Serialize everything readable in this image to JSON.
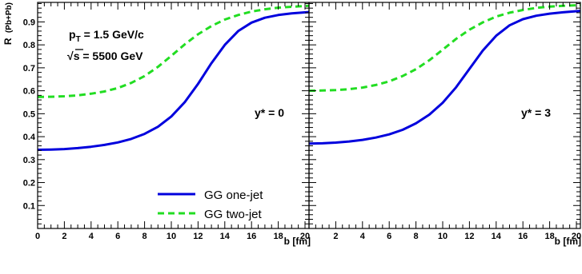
{
  "chart_data": [
    {
      "type": "line",
      "panel_label": "y* = 0",
      "annotation_lines": [
        "p_T = 1.5 GeV/c",
        "√s = 5500 GeV"
      ],
      "annotation_parts": {
        "pt_symbol": "p",
        "pt_subscript": "T",
        "pt_value": "= 1.5 GeV/c",
        "sqrt_symbol": "√",
        "sqrt_value": "s = 5500 GeV"
      },
      "xlabel": "b [fm]",
      "ylabel": "R (Pb+Pb)",
      "ylabel_parts": {
        "main": "R",
        "paren": "(Pb+Pb)"
      },
      "xlim": [
        0,
        20.3
      ],
      "ylim": [
        0.0,
        0.985
      ],
      "x_ticks": [
        0,
        2,
        4,
        6,
        8,
        10,
        12,
        14,
        16,
        18,
        20
      ],
      "x_tick_labels": [
        "0",
        "2",
        "4",
        "6",
        "8",
        "10",
        "12",
        "14",
        "16",
        "18",
        "20"
      ],
      "y_ticks": [
        0.1,
        0.2,
        0.3,
        0.4,
        0.5,
        0.6,
        0.7,
        0.8,
        0.9
      ],
      "y_tick_labels": [
        "0.1",
        "0.2",
        "0.3",
        "0.4",
        "0.5",
        "0.6",
        "0.7",
        "0.8",
        "0.9"
      ],
      "grid": false,
      "legend_placement": "bottom-center",
      "series": [
        {
          "name": "GG one-jet",
          "color": "#0000dd",
          "dash": "solid",
          "x": [
            0,
            1,
            2,
            3,
            4,
            5,
            6,
            7,
            8,
            9,
            10,
            11,
            12,
            13,
            14,
            15,
            16,
            17,
            18,
            19,
            20.3
          ],
          "y": [
            0.343,
            0.344,
            0.346,
            0.35,
            0.356,
            0.364,
            0.375,
            0.39,
            0.412,
            0.443,
            0.488,
            0.55,
            0.63,
            0.72,
            0.8,
            0.86,
            0.897,
            0.918,
            0.93,
            0.937,
            0.943
          ]
        },
        {
          "name": "GG two-jet",
          "color": "#22dd22",
          "dash": "dashed",
          "x": [
            0,
            1,
            2,
            3,
            4,
            5,
            6,
            7,
            8,
            9,
            10,
            11,
            12,
            13,
            14,
            15,
            16,
            17,
            18,
            19,
            20.3
          ],
          "y": [
            0.573,
            0.574,
            0.576,
            0.58,
            0.587,
            0.597,
            0.612,
            0.634,
            0.664,
            0.704,
            0.752,
            0.802,
            0.846,
            0.882,
            0.91,
            0.93,
            0.945,
            0.955,
            0.962,
            0.966,
            0.97
          ]
        }
      ]
    },
    {
      "type": "line",
      "panel_label": "y* = 3",
      "xlabel": "b [fm]",
      "xlim": [
        0,
        20.3
      ],
      "ylim": [
        0.0,
        0.985
      ],
      "x_ticks": [
        0,
        2,
        4,
        6,
        8,
        10,
        12,
        14,
        16,
        18,
        20
      ],
      "x_tick_labels": [
        "",
        "2",
        "4",
        "6",
        "8",
        "10",
        "12",
        "14",
        "16",
        "18",
        "20"
      ],
      "grid": false,
      "series": [
        {
          "name": "GG one-jet",
          "color": "#0000dd",
          "dash": "solid",
          "x": [
            0,
            1,
            2,
            3,
            4,
            5,
            6,
            7,
            8,
            9,
            10,
            11,
            12,
            13,
            14,
            15,
            16,
            17,
            18,
            19,
            20.3
          ],
          "y": [
            0.37,
            0.371,
            0.374,
            0.379,
            0.386,
            0.396,
            0.41,
            0.43,
            0.458,
            0.496,
            0.548,
            0.615,
            0.695,
            0.775,
            0.84,
            0.885,
            0.912,
            0.927,
            0.936,
            0.942,
            0.948
          ]
        },
        {
          "name": "GG two-jet",
          "color": "#22dd22",
          "dash": "dashed",
          "x": [
            0,
            1,
            2,
            3,
            4,
            5,
            6,
            7,
            8,
            9,
            10,
            11,
            12,
            13,
            14,
            15,
            16,
            17,
            18,
            19,
            20.3
          ],
          "y": [
            0.6,
            0.601,
            0.603,
            0.607,
            0.614,
            0.625,
            0.641,
            0.664,
            0.694,
            0.733,
            0.779,
            0.826,
            0.866,
            0.898,
            0.923,
            0.94,
            0.952,
            0.961,
            0.967,
            0.97,
            0.973
          ]
        }
      ]
    }
  ]
}
